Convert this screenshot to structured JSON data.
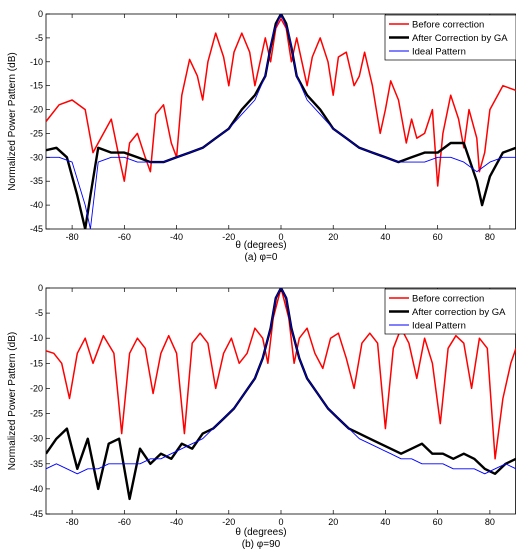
{
  "chart_data": [
    {
      "type": "line",
      "caption": "(a) φ=0",
      "xlabel": "θ (degrees)",
      "ylabel": "Normalized Power Pattern (dB)",
      "xlim": [
        -90,
        90
      ],
      "ylim": [
        -45,
        0
      ],
      "xticks": [
        -80,
        -60,
        -40,
        -20,
        0,
        20,
        40,
        60,
        80
      ],
      "yticks": [
        0,
        -5,
        -10,
        -15,
        -20,
        -25,
        -30,
        -35,
        -40,
        -45
      ],
      "grid": false,
      "legend_position": "top-right",
      "series": [
        {
          "name": "Before correction",
          "color": "#ff0000",
          "width": 1.5,
          "x": [
            -90,
            -85,
            -80,
            -75,
            -72,
            -70,
            -65,
            -62,
            -60,
            -58,
            -55,
            -52,
            -50,
            -48,
            -45,
            -42,
            -40,
            -38,
            -35,
            -32,
            -30,
            -28,
            -25,
            -22,
            -20,
            -18,
            -15,
            -12,
            -10,
            -8,
            -6,
            -4,
            -2,
            0,
            2,
            4,
            6,
            8,
            10,
            12,
            15,
            18,
            20,
            22,
            25,
            28,
            30,
            32,
            35,
            38,
            40,
            42,
            45,
            48,
            50,
            52,
            55,
            58,
            60,
            62,
            65,
            68,
            70,
            72,
            75,
            76,
            78,
            80,
            85,
            90
          ],
          "y": [
            -22.5,
            -19,
            -18,
            -20,
            -29,
            -27,
            -22,
            -30,
            -35,
            -27,
            -25,
            -30,
            -33,
            -21,
            -19,
            -27,
            -30,
            -17,
            -9.5,
            -13,
            -18,
            -10,
            -4,
            -9,
            -15,
            -8,
            -4,
            -8,
            -15,
            -10,
            -5,
            -10,
            -3,
            -1,
            -3,
            -10,
            -5,
            -10,
            -15,
            -9,
            -5,
            -10,
            -17,
            -9,
            -8,
            -15,
            -13,
            -8,
            -15,
            -25,
            -20,
            -14,
            -18,
            -27,
            -22,
            -26,
            -25,
            -20,
            -36,
            -25,
            -17,
            -22,
            -28,
            -20,
            -26,
            -33,
            -29,
            -20,
            -15,
            -16
          ]
        },
        {
          "name": "After Correction by GA",
          "color": "#000000",
          "width": 2.4,
          "x": [
            -90,
            -86,
            -82,
            -78,
            -75,
            -73,
            -70,
            -65,
            -60,
            -55,
            -50,
            -45,
            -40,
            -35,
            -30,
            -25,
            -20,
            -15,
            -10,
            -8,
            -6,
            -4,
            -2,
            0,
            2,
            4,
            6,
            8,
            10,
            15,
            20,
            25,
            30,
            35,
            40,
            45,
            50,
            55,
            60,
            65,
            70,
            75,
            77,
            80,
            85,
            90
          ],
          "y": [
            -28.5,
            -28,
            -30,
            -38,
            -45,
            -38,
            -28,
            -29,
            -29,
            -30,
            -31,
            -31,
            -30,
            -29,
            -28,
            -26,
            -24,
            -20,
            -17,
            -15,
            -13,
            -7,
            -2,
            0,
            -2,
            -7,
            -13,
            -15,
            -17,
            -20,
            -24,
            -26,
            -28,
            -29,
            -30,
            -31,
            -30,
            -29,
            -29,
            -27,
            -27,
            -35,
            -40,
            -34,
            -29,
            -28
          ]
        },
        {
          "name": "Ideal Pattern",
          "color": "#0000ff",
          "width": 0.9,
          "x": [
            -90,
            -85,
            -80,
            -75,
            -73,
            -70,
            -65,
            -60,
            -55,
            -50,
            -45,
            -40,
            -35,
            -30,
            -25,
            -20,
            -15,
            -10,
            -6,
            -3,
            0,
            3,
            6,
            10,
            15,
            20,
            25,
            30,
            35,
            40,
            45,
            50,
            55,
            60,
            65,
            70,
            75,
            80,
            85,
            90
          ],
          "y": [
            -30,
            -30,
            -31,
            -40,
            -45,
            -31,
            -30,
            -30,
            -31,
            -31,
            -31,
            -30,
            -29,
            -28,
            -26,
            -24,
            -21,
            -18,
            -13,
            -4,
            0,
            -4,
            -13,
            -18,
            -21,
            -24,
            -26,
            -28,
            -29,
            -30,
            -31,
            -31,
            -31,
            -30,
            -30,
            -31,
            -33,
            -31,
            -30,
            -30
          ]
        }
      ]
    },
    {
      "type": "line",
      "caption": "(b) φ=90",
      "xlabel": "θ (degrees)",
      "ylabel": "Normalized Power Pattern (dB)",
      "xlim": [
        -90,
        90
      ],
      "ylim": [
        -45,
        0
      ],
      "xticks": [
        -80,
        -60,
        -40,
        -20,
        0,
        20,
        40,
        60,
        80
      ],
      "yticks": [
        0,
        -5,
        -10,
        -15,
        -20,
        -25,
        -30,
        -35,
        -40,
        -45
      ],
      "grid": false,
      "legend_position": "top-right",
      "series": [
        {
          "name": "Before correction",
          "color": "#ff0000",
          "width": 1.5,
          "x": [
            -90,
            -87,
            -84,
            -81,
            -78,
            -75,
            -72,
            -68,
            -64,
            -61,
            -58,
            -55,
            -52,
            -49,
            -46,
            -43,
            -40,
            -37,
            -34,
            -31,
            -28,
            -25,
            -22,
            -19,
            -16,
            -13,
            -10,
            -7,
            -5,
            -3,
            -1,
            0,
            1,
            3,
            5,
            7,
            10,
            13,
            16,
            19,
            22,
            25,
            28,
            31,
            34,
            37,
            40,
            43,
            46,
            49,
            52,
            55,
            58,
            61,
            64,
            67,
            70,
            73,
            76,
            79,
            82,
            85,
            88,
            90
          ],
          "y": [
            -12.5,
            -13,
            -15,
            -22,
            -13,
            -10,
            -15,
            -9.5,
            -13,
            -29,
            -13,
            -10,
            -12,
            -21,
            -13,
            -9.5,
            -13,
            -29,
            -11,
            -9,
            -11,
            -20,
            -13,
            -10,
            -15,
            -13,
            -8,
            -10,
            -15,
            -6,
            -2,
            0,
            -2,
            -6,
            -15,
            -10,
            -8,
            -13,
            -16,
            -10,
            -9,
            -14,
            -20,
            -11,
            -9,
            -11,
            -28,
            -12,
            -8,
            -11,
            -18,
            -10,
            -15,
            -27,
            -12,
            -9.5,
            -11,
            -20,
            -10,
            -12,
            -34,
            -22,
            -15,
            -12
          ]
        },
        {
          "name": "After correction by GA",
          "color": "#000000",
          "width": 2.4,
          "x": [
            -90,
            -86,
            -82,
            -78,
            -74,
            -70,
            -66,
            -62,
            -58,
            -54,
            -50,
            -46,
            -42,
            -38,
            -34,
            -30,
            -26,
            -22,
            -18,
            -14,
            -10,
            -7,
            -4,
            -2,
            0,
            2,
            4,
            7,
            10,
            14,
            18,
            22,
            26,
            30,
            34,
            38,
            42,
            46,
            50,
            54,
            58,
            62,
            66,
            70,
            74,
            78,
            82,
            86,
            90
          ],
          "y": [
            -33,
            -30,
            -28,
            -36,
            -30,
            -40,
            -31,
            -30,
            -42,
            -32,
            -35,
            -33,
            -34,
            -31,
            -32,
            -29,
            -28,
            -26,
            -24,
            -21,
            -18,
            -14,
            -8,
            -2,
            0,
            -2,
            -8,
            -14,
            -18,
            -21,
            -24,
            -26,
            -28,
            -29,
            -30,
            -31,
            -32,
            -33,
            -32,
            -31,
            -33,
            -33,
            -34,
            -33,
            -34,
            -36,
            -37,
            -35,
            -34
          ]
        },
        {
          "name": "Ideal Pattern",
          "color": "#0000ff",
          "width": 0.9,
          "x": [
            -90,
            -86,
            -82,
            -78,
            -74,
            -70,
            -66,
            -62,
            -58,
            -54,
            -50,
            -46,
            -42,
            -38,
            -34,
            -30,
            -26,
            -22,
            -18,
            -14,
            -10,
            -7,
            -4,
            -2,
            0,
            2,
            4,
            7,
            10,
            14,
            18,
            22,
            26,
            30,
            34,
            38,
            42,
            46,
            50,
            54,
            58,
            62,
            66,
            70,
            74,
            78,
            82,
            86,
            90
          ],
          "y": [
            -36,
            -35,
            -36,
            -37,
            -36,
            -36,
            -35,
            -35,
            -35,
            -35,
            -34,
            -34,
            -33,
            -32,
            -31,
            -30,
            -28,
            -26,
            -24,
            -21,
            -18,
            -14,
            -8,
            -2,
            0,
            -2,
            -8,
            -14,
            -18,
            -21,
            -24,
            -26,
            -28,
            -30,
            -31,
            -32,
            -33,
            -34,
            -34,
            -35,
            -35,
            -35,
            -36,
            -36,
            -36,
            -37,
            -36,
            -35,
            -36
          ]
        }
      ]
    }
  ]
}
